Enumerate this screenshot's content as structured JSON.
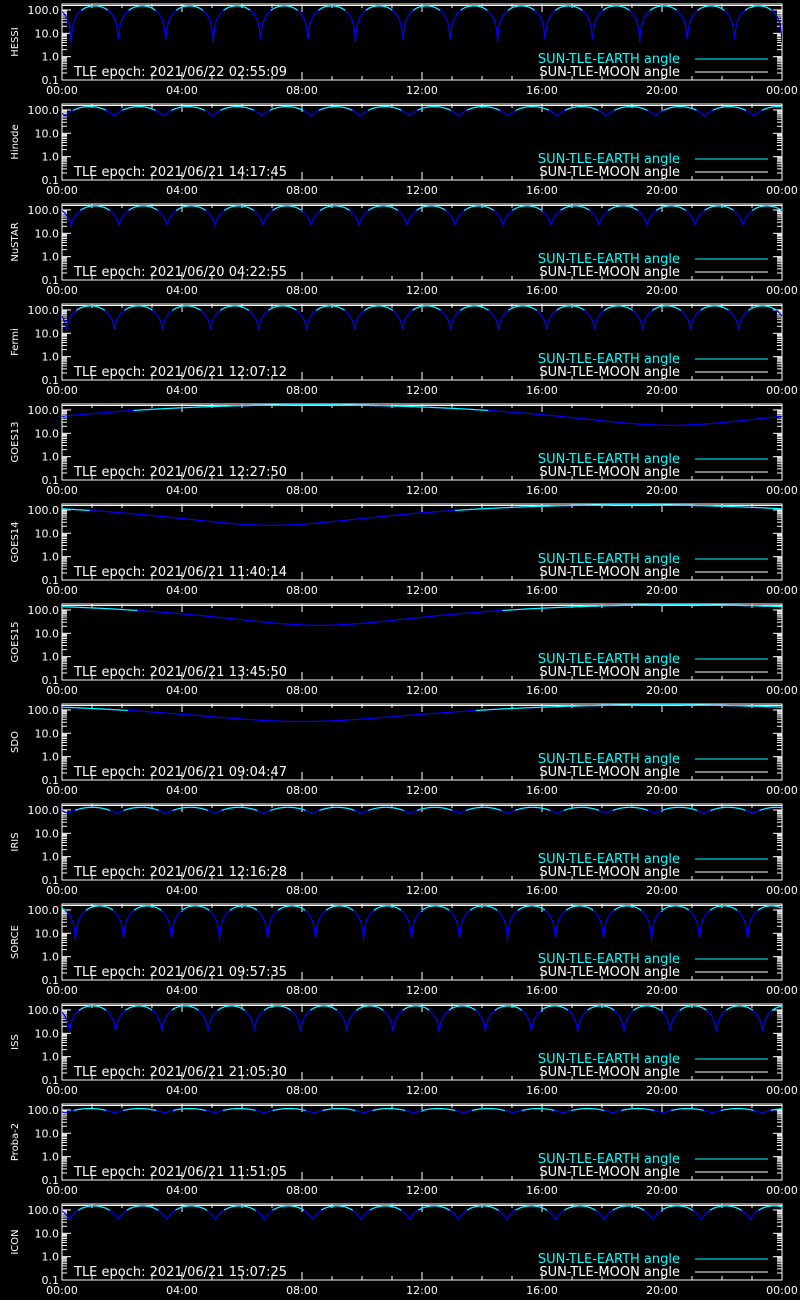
{
  "chart_data": {
    "type": "line",
    "y_scale": "log",
    "ylim": [
      0.1,
      180
    ],
    "y_ticks": [
      "100.0",
      "10.0",
      "1.0",
      "0.1"
    ],
    "x_ticks": [
      "00:00",
      "04:00",
      "08:00",
      "12:00",
      "16:00",
      "20:00",
      "00:00"
    ],
    "xlim_hours": [
      0,
      24
    ],
    "legend": {
      "placement": "bottom-right",
      "earth_label": "SUN-TLE-EARTH angle",
      "moon_label": "SUN-TLE-MOON angle"
    },
    "colors": {
      "earth_bright": "#00ffff",
      "earth_dark": "#0000ff",
      "moon": "#ffffff",
      "axes": "#ffffff",
      "background": "#000000"
    },
    "panels": [
      {
        "satellite": "HESSI",
        "epoch": "TLE epoch: 2021/06/22 02:55:09",
        "moon_angle": 155,
        "earth_angle": {
          "kind": "orbital",
          "period_hours": 1.58,
          "phase_hours": 0.3,
          "max": 150,
          "min": 4
        }
      },
      {
        "satellite": "Hinode",
        "epoch": "TLE epoch: 2021/06/21 14:17:45",
        "moon_angle": 155,
        "earth_angle": {
          "kind": "orbital",
          "period_hours": 1.64,
          "phase_hours": 0.1,
          "max": 140,
          "min": 55
        }
      },
      {
        "satellite": "NuSTAR",
        "epoch": "TLE epoch: 2021/06/20 04:22:55",
        "moon_angle": 155,
        "earth_angle": {
          "kind": "orbital",
          "period_hours": 1.6,
          "phase_hours": 0.3,
          "max": 150,
          "min": 22
        }
      },
      {
        "satellite": "Fermi",
        "epoch": "TLE epoch: 2021/06/21 12:07:12",
        "moon_angle": 155,
        "earth_angle": {
          "kind": "orbital",
          "period_hours": 1.6,
          "phase_hours": 0.15,
          "max": 150,
          "min": 15
        }
      },
      {
        "satellite": "GOES13",
        "epoch": "TLE epoch: 2021/06/21 12:27:50",
        "moon_angle": 155,
        "earth_angle": {
          "kind": "geo",
          "t_min_hours": 20.3,
          "max": 165,
          "min": 22
        }
      },
      {
        "satellite": "GOES14",
        "epoch": "TLE epoch: 2021/06/21 11:40:14",
        "moon_angle": 155,
        "earth_angle": {
          "kind": "geo",
          "t_min_hours": 7.0,
          "max": 165,
          "min": 22
        }
      },
      {
        "satellite": "GOES15",
        "epoch": "TLE epoch: 2021/06/21 13:45:50",
        "moon_angle": 155,
        "earth_angle": {
          "kind": "geo",
          "t_min_hours": 8.6,
          "max": 165,
          "min": 22
        }
      },
      {
        "satellite": "SDO",
        "epoch": "TLE epoch: 2021/06/21 09:04:47",
        "moon_angle": 155,
        "earth_angle": {
          "kind": "geo",
          "t_min_hours": 8.0,
          "max": 165,
          "min": 32
        }
      },
      {
        "satellite": "IRIS",
        "epoch": "TLE epoch: 2021/06/21 12:16:28",
        "moon_angle": 155,
        "earth_angle": {
          "kind": "orbital",
          "period_hours": 1.63,
          "phase_hours": 0.2,
          "max": 130,
          "min": 70
        }
      },
      {
        "satellite": "SORCE",
        "epoch": "TLE epoch: 2021/06/21 09:57:35",
        "moon_angle": 155,
        "earth_angle": {
          "kind": "orbital",
          "period_hours": 1.6,
          "phase_hours": 0.45,
          "max": 150,
          "min": 5
        }
      },
      {
        "satellite": "ISS",
        "epoch": "TLE epoch: 2021/06/21 21:05:30",
        "moon_angle": 155,
        "earth_angle": {
          "kind": "orbital",
          "period_hours": 1.54,
          "phase_hours": 0.25,
          "max": 150,
          "min": 12
        }
      },
      {
        "satellite": "Proba-2",
        "epoch": "TLE epoch: 2021/06/21 11:51:05",
        "moon_angle": 155,
        "earth_angle": {
          "kind": "orbital",
          "period_hours": 1.66,
          "phase_hours": 0.1,
          "max": 115,
          "min": 75
        }
      },
      {
        "satellite": "ICON",
        "epoch": "TLE epoch: 2021/06/21 15:07:25",
        "moon_angle": 155,
        "earth_angle": {
          "kind": "orbital",
          "period_hours": 1.62,
          "phase_hours": 0.25,
          "max": 150,
          "min": 38
        }
      }
    ]
  }
}
